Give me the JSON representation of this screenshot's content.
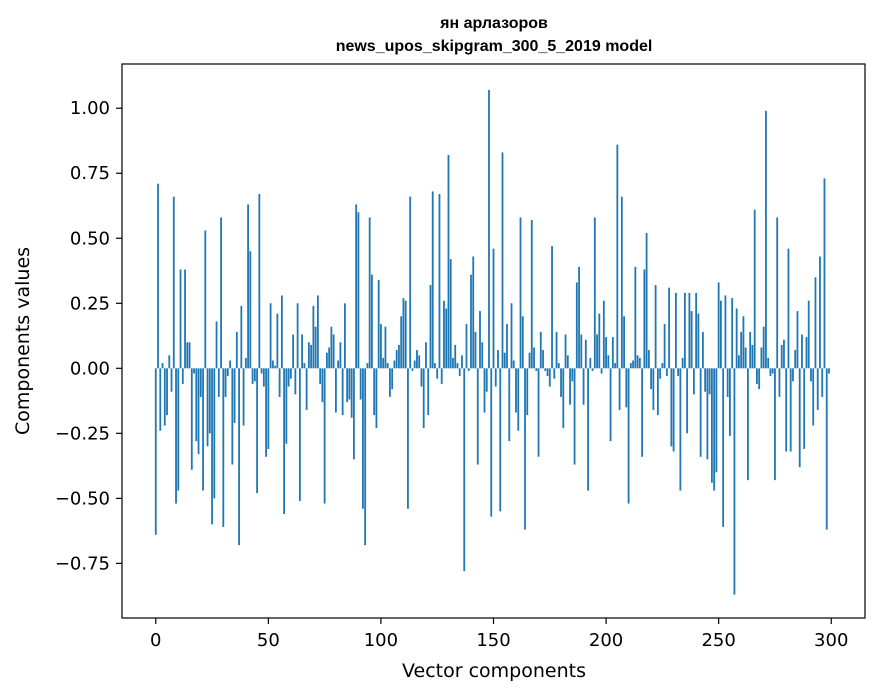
{
  "chart_data": {
    "type": "bar",
    "title": "ян арлазоров",
    "subtitle": "news_upos_skipgram_300_5_2019 model",
    "xlabel": "Vector components",
    "ylabel": "Components values",
    "xlim": [
      -15,
      315
    ],
    "ylim": [
      -0.96,
      1.17
    ],
    "xticks": [
      0,
      50,
      100,
      150,
      200,
      250,
      300
    ],
    "yticks": [
      -0.75,
      -0.5,
      -0.25,
      0.0,
      0.25,
      0.5,
      0.75,
      1.0
    ],
    "xtick_labels": [
      "0",
      "50",
      "100",
      "150",
      "200",
      "250",
      "300"
    ],
    "ytick_labels": [
      "−0.75",
      "−0.50",
      "−0.25",
      "0.00",
      "0.25",
      "0.50",
      "0.75",
      "1.00"
    ],
    "grid": false,
    "bar_color": "#1f77b4",
    "x": [
      0,
      1,
      2,
      3,
      4,
      5,
      6,
      7,
      8,
      9,
      10,
      11,
      12,
      13,
      14,
      15,
      16,
      17,
      18,
      19,
      20,
      21,
      22,
      23,
      24,
      25,
      26,
      27,
      28,
      29,
      30,
      31,
      32,
      33,
      34,
      35,
      36,
      37,
      38,
      39,
      40,
      41,
      42,
      43,
      44,
      45,
      46,
      47,
      48,
      49,
      50,
      51,
      52,
      53,
      54,
      55,
      56,
      57,
      58,
      59,
      60,
      61,
      62,
      63,
      64,
      65,
      66,
      67,
      68,
      69,
      70,
      71,
      72,
      73,
      74,
      75,
      76,
      77,
      78,
      79,
      80,
      81,
      82,
      83,
      84,
      85,
      86,
      87,
      88,
      89,
      90,
      91,
      92,
      93,
      94,
      95,
      96,
      97,
      98,
      99,
      100,
      101,
      102,
      103,
      104,
      105,
      106,
      107,
      108,
      109,
      110,
      111,
      112,
      113,
      114,
      115,
      116,
      117,
      118,
      119,
      120,
      121,
      122,
      123,
      124,
      125,
      126,
      127,
      128,
      129,
      130,
      131,
      132,
      133,
      134,
      135,
      136,
      137,
      138,
      139,
      140,
      141,
      142,
      143,
      144,
      145,
      146,
      147,
      148,
      149,
      150,
      151,
      152,
      153,
      154,
      155,
      156,
      157,
      158,
      159,
      160,
      161,
      162,
      163,
      164,
      165,
      166,
      167,
      168,
      169,
      170,
      171,
      172,
      173,
      174,
      175,
      176,
      177,
      178,
      179,
      180,
      181,
      182,
      183,
      184,
      185,
      186,
      187,
      188,
      189,
      190,
      191,
      192,
      193,
      194,
      195,
      196,
      197,
      198,
      199,
      200,
      201,
      202,
      203,
      204,
      205,
      206,
      207,
      208,
      209,
      210,
      211,
      212,
      213,
      214,
      215,
      216,
      217,
      218,
      219,
      220,
      221,
      222,
      223,
      224,
      225,
      226,
      227,
      228,
      229,
      230,
      231,
      232,
      233,
      234,
      235,
      236,
      237,
      238,
      239,
      240,
      241,
      242,
      243,
      244,
      245,
      246,
      247,
      248,
      249,
      250,
      251,
      252,
      253,
      254,
      255,
      256,
      257,
      258,
      259,
      260,
      261,
      262,
      263,
      264,
      265,
      266,
      267,
      268,
      269,
      270,
      271,
      272,
      273,
      274,
      275,
      276,
      277,
      278,
      279,
      280,
      281,
      282,
      283,
      284,
      285,
      286,
      287,
      288,
      289,
      290,
      291,
      292,
      293,
      294,
      295,
      296,
      297,
      298,
      299
    ],
    "values": [
      -0.64,
      0.71,
      -0.24,
      0.02,
      -0.22,
      -0.18,
      0.05,
      -0.09,
      0.66,
      -0.52,
      -0.47,
      0.38,
      -0.06,
      0.38,
      0.1,
      0.1,
      -0.39,
      -0.02,
      -0.28,
      -0.33,
      -0.11,
      -0.47,
      0.53,
      -0.3,
      -0.25,
      -0.6,
      -0.5,
      0.18,
      -0.11,
      0.58,
      -0.61,
      -0.11,
      -0.03,
      0.03,
      -0.37,
      -0.21,
      0.14,
      -0.68,
      0.24,
      -0.22,
      0.04,
      0.63,
      0.45,
      -0.06,
      -0.05,
      -0.48,
      0.67,
      -0.02,
      -0.07,
      -0.34,
      -0.31,
      0.25,
      0.03,
      0.01,
      0.21,
      -0.11,
      0.28,
      -0.56,
      -0.29,
      -0.07,
      -0.04,
      0.13,
      -0.1,
      0.25,
      -0.51,
      0.13,
      0.02,
      -0.16,
      0.1,
      0.09,
      0.24,
      0.16,
      0.28,
      -0.06,
      -0.13,
      -0.52,
      0.06,
      0.08,
      0.16,
      0.13,
      -0.17,
      0.03,
      0.1,
      -0.18,
      0.25,
      -0.13,
      -0.12,
      -0.19,
      -0.35,
      0.63,
      0.6,
      -0.12,
      -0.54,
      -0.68,
      0.02,
      0.58,
      0.36,
      -0.18,
      -0.23,
      0.34,
      0.17,
      0.04,
      0.16,
      0.02,
      -0.11,
      -0.08,
      0.03,
      0.07,
      0.09,
      0.2,
      0.27,
      0.26,
      -0.54,
      0.66,
      -0.01,
      0.03,
      0.07,
      0.05,
      -0.07,
      -0.23,
      0.1,
      -0.18,
      0.32,
      0.68,
      0.02,
      -0.04,
      0.67,
      -0.06,
      0.26,
      0.23,
      0.82,
      0.42,
      0.04,
      0.09,
      0.02,
      -0.03,
      0.05,
      -0.78,
      0.17,
      -0.01,
      0.36,
      0.43,
      0.14,
      -0.37,
      0.22,
      0.1,
      -0.17,
      -0.09,
      1.07,
      -0.57,
      0.46,
      -0.07,
      0.07,
      -0.55,
      0.83,
      0.06,
      0.17,
      -0.28,
      0.25,
      0.03,
      -0.17,
      -0.24,
      0.58,
      0.2,
      -0.62,
      -0.18,
      0.06,
      0.57,
      0.08,
      -0.01,
      -0.34,
      0.14,
      0.07,
      -0.01,
      -0.03,
      -0.07,
      0.47,
      -0.04,
      0.14,
      0.02,
      -0.11,
      -0.23,
      0.13,
      0.05,
      -0.14,
      -0.05,
      -0.37,
      0.33,
      0.39,
      0.13,
      -0.14,
      0.11,
      -0.47,
      0.04,
      -0.01,
      0.58,
      0.13,
      0.21,
      -0.02,
      0.26,
      0.12,
      0.05,
      -0.28,
      0.12,
      0.02,
      0.86,
      -0.16,
      0.66,
      0.2,
      -0.15,
      -0.52,
      0.02,
      0.03,
      0.39,
      0.05,
      0.04,
      -0.34,
      0.38,
      0.52,
      0.07,
      -0.08,
      -0.16,
      0.32,
      -0.18,
      -0.04,
      0.02,
      0.17,
      -0.03,
      0.31,
      -0.3,
      -0.32,
      0.29,
      -0.03,
      -0.47,
      0.04,
      0.29,
      -0.25,
      0.29,
      0.22,
      -0.1,
      0.29,
      0.21,
      -0.34,
      0.14,
      -0.09,
      -0.35,
      -0.1,
      -0.44,
      -0.47,
      -0.4,
      0.33,
      0.26,
      -0.61,
      0.28,
      -0.11,
      -0.26,
      0.27,
      -0.87,
      0.23,
      0.05,
      0.14,
      0.2,
      0.08,
      -0.43,
      0.14,
      0.09,
      0.61,
      -0.06,
      -0.08,
      0.08,
      0.16,
      0.99,
      0.04,
      -0.03,
      -0.02,
      -0.43,
      0.58,
      -0.11,
      0.09,
      0.11,
      -0.32,
      0.46,
      -0.32,
      -0.05,
      0.07,
      0.22,
      -0.38,
      0.13,
      -0.31,
      0.12,
      0.26,
      -0.05,
      -0.22,
      0.35,
      -0.16,
      0.43,
      -0.11,
      0.73,
      -0.62,
      -0.02
    ]
  }
}
